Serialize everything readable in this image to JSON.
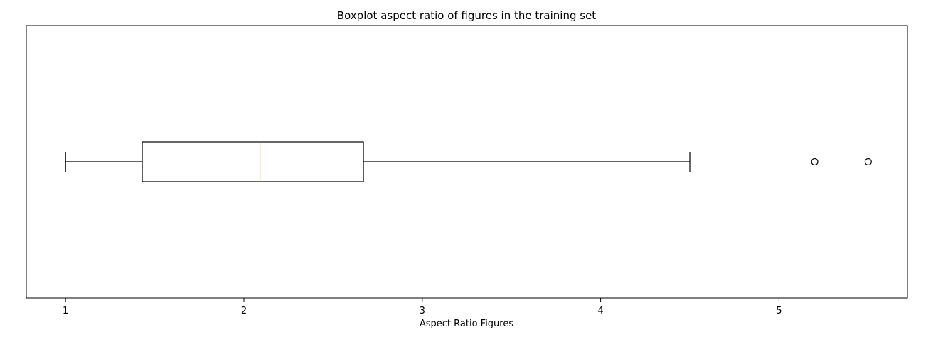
{
  "chart_data": {
    "type": "boxplot",
    "orientation": "horizontal",
    "title": "Boxplot aspect ratio of figures in the training set",
    "xlabel": "Aspect Ratio Figures",
    "ylabel": "",
    "xlim": [
      0.78,
      5.72
    ],
    "xticks": [
      1,
      2,
      3,
      4,
      5
    ],
    "xtick_labels": [
      "1",
      "2",
      "3",
      "4",
      "5"
    ],
    "grid": false,
    "box": {
      "whisker_low": 1.0,
      "q1": 1.43,
      "median": 2.09,
      "q3": 2.67,
      "whisker_high": 4.5,
      "outliers": [
        5.2,
        5.5
      ]
    },
    "colors": {
      "box": "#000000",
      "median": "#ff7f0e",
      "outlier": "#000000"
    }
  }
}
